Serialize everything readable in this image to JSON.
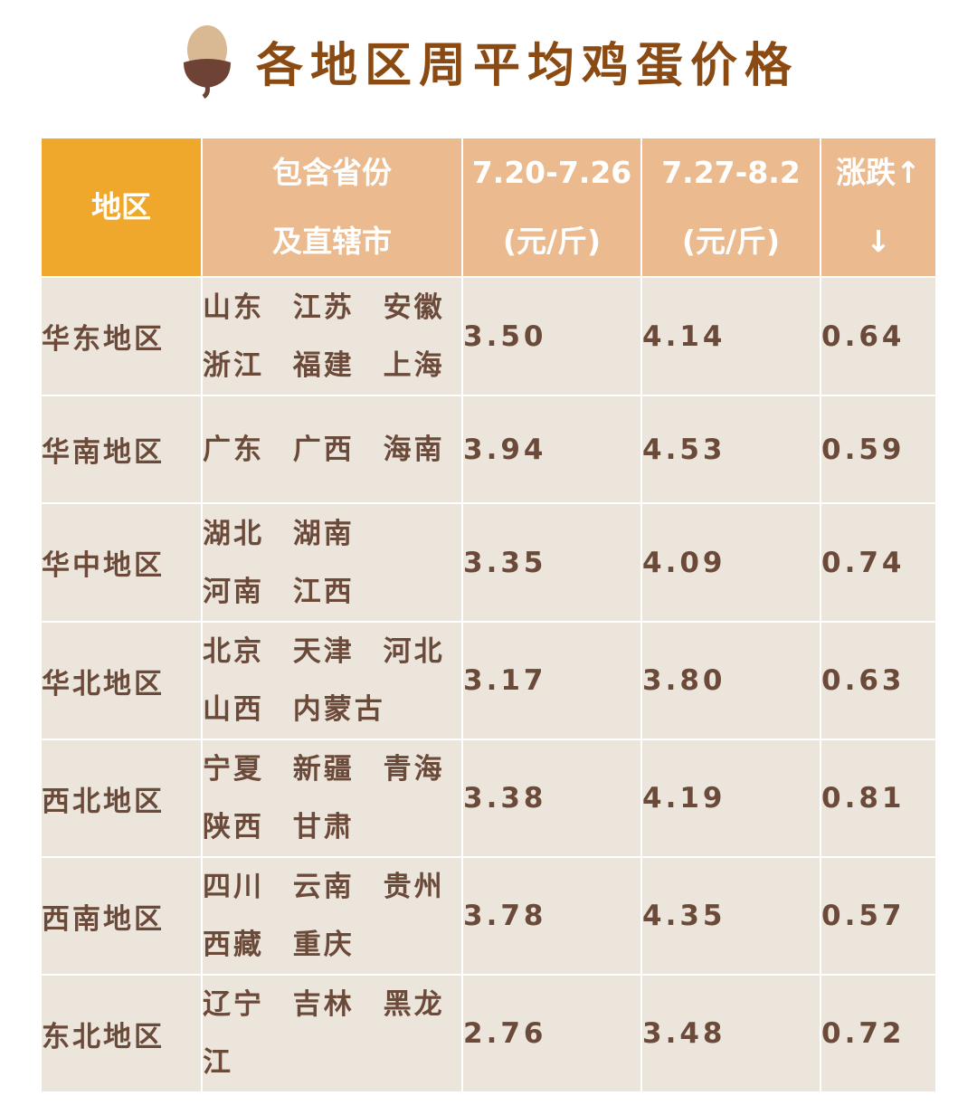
{
  "title": "各地区周平均鸡蛋价格",
  "icon": "acorn-icon",
  "colors": {
    "title": "#8b4a12",
    "header": "#ebbb8f",
    "header_first": "#f0a82c",
    "cell": "#ebe5dc",
    "text": "#6b4a3a"
  },
  "headers": [
    {
      "lines": [
        "地区"
      ]
    },
    {
      "lines": [
        "包含省份",
        "及直辖市"
      ]
    },
    {
      "lines": [
        "7.20-7.26",
        "(元/斤)"
      ]
    },
    {
      "lines": [
        "7.27-8.2",
        "(元/斤)"
      ]
    },
    {
      "lines": [
        "涨跌↑",
        "↓"
      ]
    }
  ],
  "rows": [
    {
      "region": "华东地区",
      "provinces": [
        "山东 江苏 安徽",
        "浙江 福建 上海"
      ],
      "prev": "3.50",
      "curr": "4.14",
      "change": "0.64"
    },
    {
      "region": "华南地区",
      "provinces": [
        "广东 广西 海南"
      ],
      "prev": "3.94",
      "curr": "4.53",
      "change": "0.59"
    },
    {
      "region": "华中地区",
      "provinces": [
        "湖北 湖南",
        "河南 江西"
      ],
      "prev": "3.35",
      "curr": "4.09",
      "change": "0.74"
    },
    {
      "region": "华北地区",
      "provinces": [
        "北京 天津 河北",
        "山西 内蒙古"
      ],
      "prev": "3.17",
      "curr": "3.80",
      "change": "0.63"
    },
    {
      "region": "西北地区",
      "provinces": [
        "宁夏 新疆 青海",
        "陕西 甘肃"
      ],
      "prev": "3.38",
      "curr": "4.19",
      "change": "0.81"
    },
    {
      "region": "西南地区",
      "provinces": [
        "四川 云南 贵州",
        "西藏 重庆"
      ],
      "prev": "3.78",
      "curr": "4.35",
      "change": "0.57"
    },
    {
      "region": "东北地区",
      "provinces": [
        "辽宁 吉林 黑龙",
        "江"
      ],
      "prev": "2.76",
      "curr": "3.48",
      "change": "0.72"
    }
  ]
}
